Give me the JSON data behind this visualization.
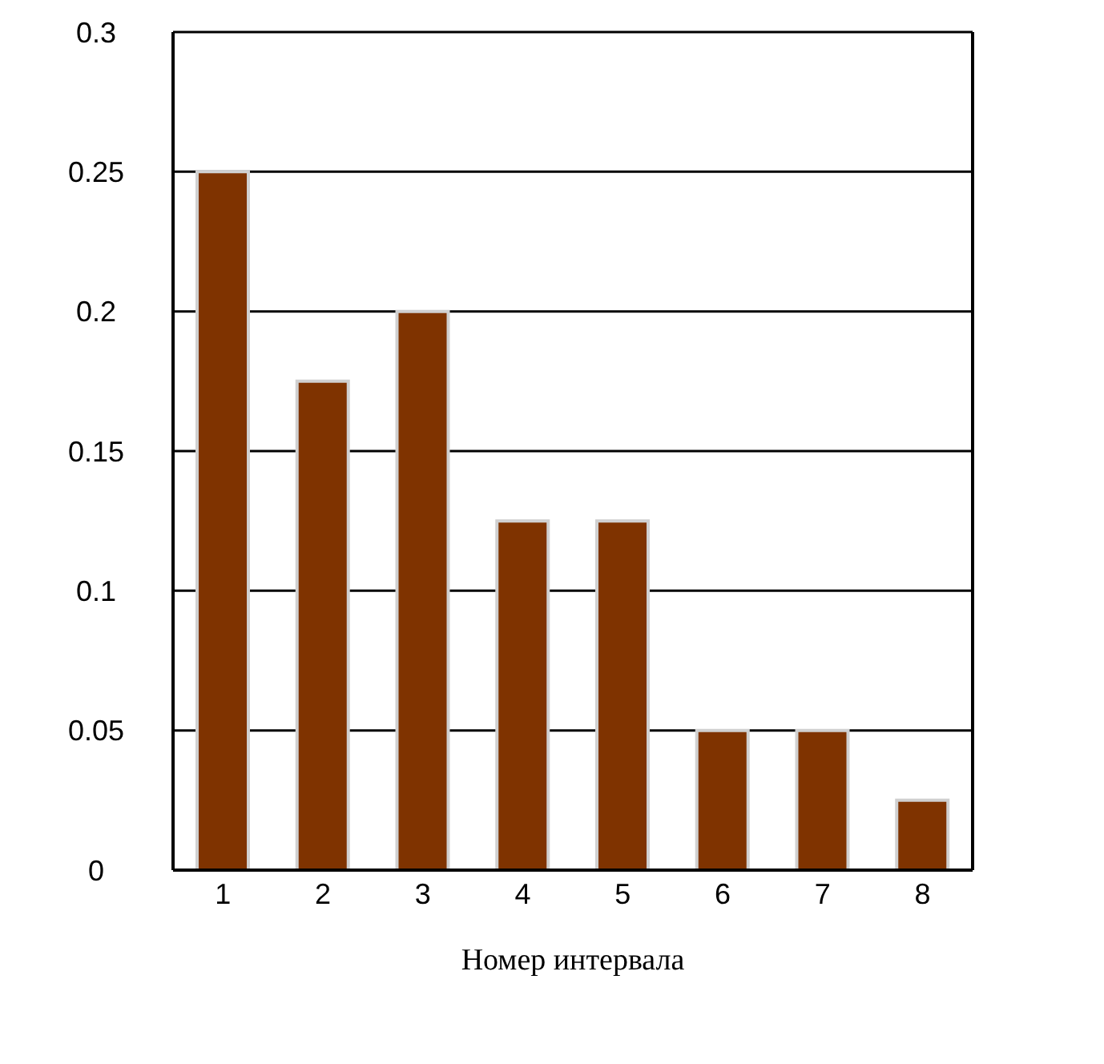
{
  "chart_data": {
    "type": "bar",
    "xlabel": "Номер интервала",
    "categories": [
      "1",
      "2",
      "3",
      "4",
      "5",
      "6",
      "7",
      "8"
    ],
    "values": [
      0.25,
      0.175,
      0.2,
      0.125,
      0.125,
      0.05,
      0.05,
      0.025
    ],
    "color": "#7f3300",
    "ylim": [
      0,
      0.3
    ],
    "yticks": [
      0,
      0.05,
      0.1,
      0.15,
      0.2,
      0.25,
      0.3
    ],
    "grid": "y",
    "legend": false
  }
}
